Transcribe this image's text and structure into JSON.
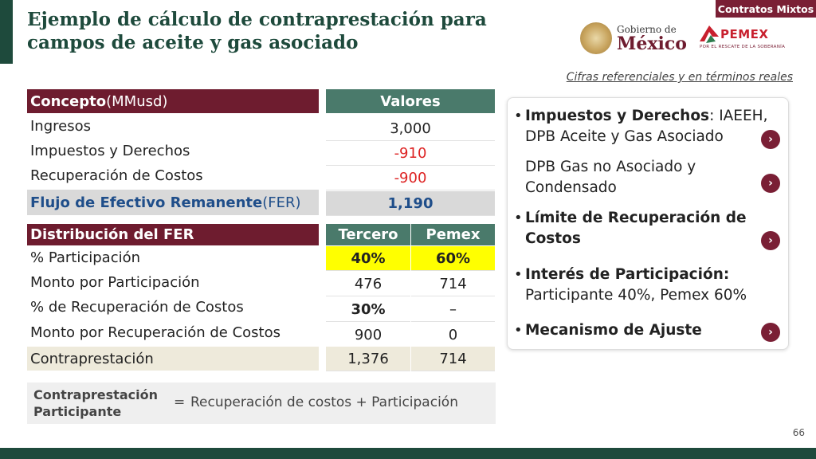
{
  "tag": "Contratos Mixtos",
  "title": "Ejemplo de cálculo de contraprestación para campos de aceite y gas asociado",
  "logos": {
    "gobierno_line1": "Gobierno de",
    "gobierno_line2": "México",
    "pemex_word": "PEMEX",
    "pemex_sub": "POR EL RESCATE DE LA SOBERANÍA"
  },
  "note": "Cifras referenciales y en términos reales",
  "table1": {
    "header_concept": "Concepto",
    "header_unit": " (MMusd)",
    "header_values": "Valores",
    "rows": [
      {
        "label": "Ingresos",
        "value": "3,000"
      },
      {
        "label": "Impuestos y Derechos",
        "value": "-910"
      },
      {
        "label": "Recuperación de Costos",
        "value": "-900"
      }
    ],
    "fer_label": "Flujo de Efectivo Remanente",
    "fer_suffix": " (FER)",
    "fer_value": "1,190"
  },
  "table2": {
    "header": "Distribución del FER",
    "col1": "Tercero",
    "col2": "Pemex",
    "rows": [
      {
        "label": "% Participación",
        "c1": "40%",
        "c2": "60%"
      },
      {
        "label": "Monto por Participación",
        "c1": "476",
        "c2": "714"
      },
      {
        "label": "% de Recuperación de Costos",
        "c1": "30%",
        "c2": "–"
      },
      {
        "label": "Monto por Recuperación de Costos",
        "c1": "900",
        "c2": "0"
      },
      {
        "label": "Contraprestación",
        "c1": "1,376",
        "c2": "714"
      }
    ]
  },
  "formula": {
    "label_line1": "Contraprestación",
    "label_line2": "Participante",
    "equals": "=",
    "text": "Recuperación de costos + Participación"
  },
  "panel": {
    "item1_bold": "Impuestos y Derechos",
    "item1_rest": ": IAEEH, DPB Aceite y Gas Asociado",
    "item1b": "DPB Gas no Asociado y Condensado",
    "item2": "Límite de Recuperación de Costos",
    "item3_bold": "Interés de Participación:",
    "item3_rest": "Participante 40%, Pemex 60%",
    "item4": "Mecanismo de Ajuste"
  },
  "page_number": "66"
}
